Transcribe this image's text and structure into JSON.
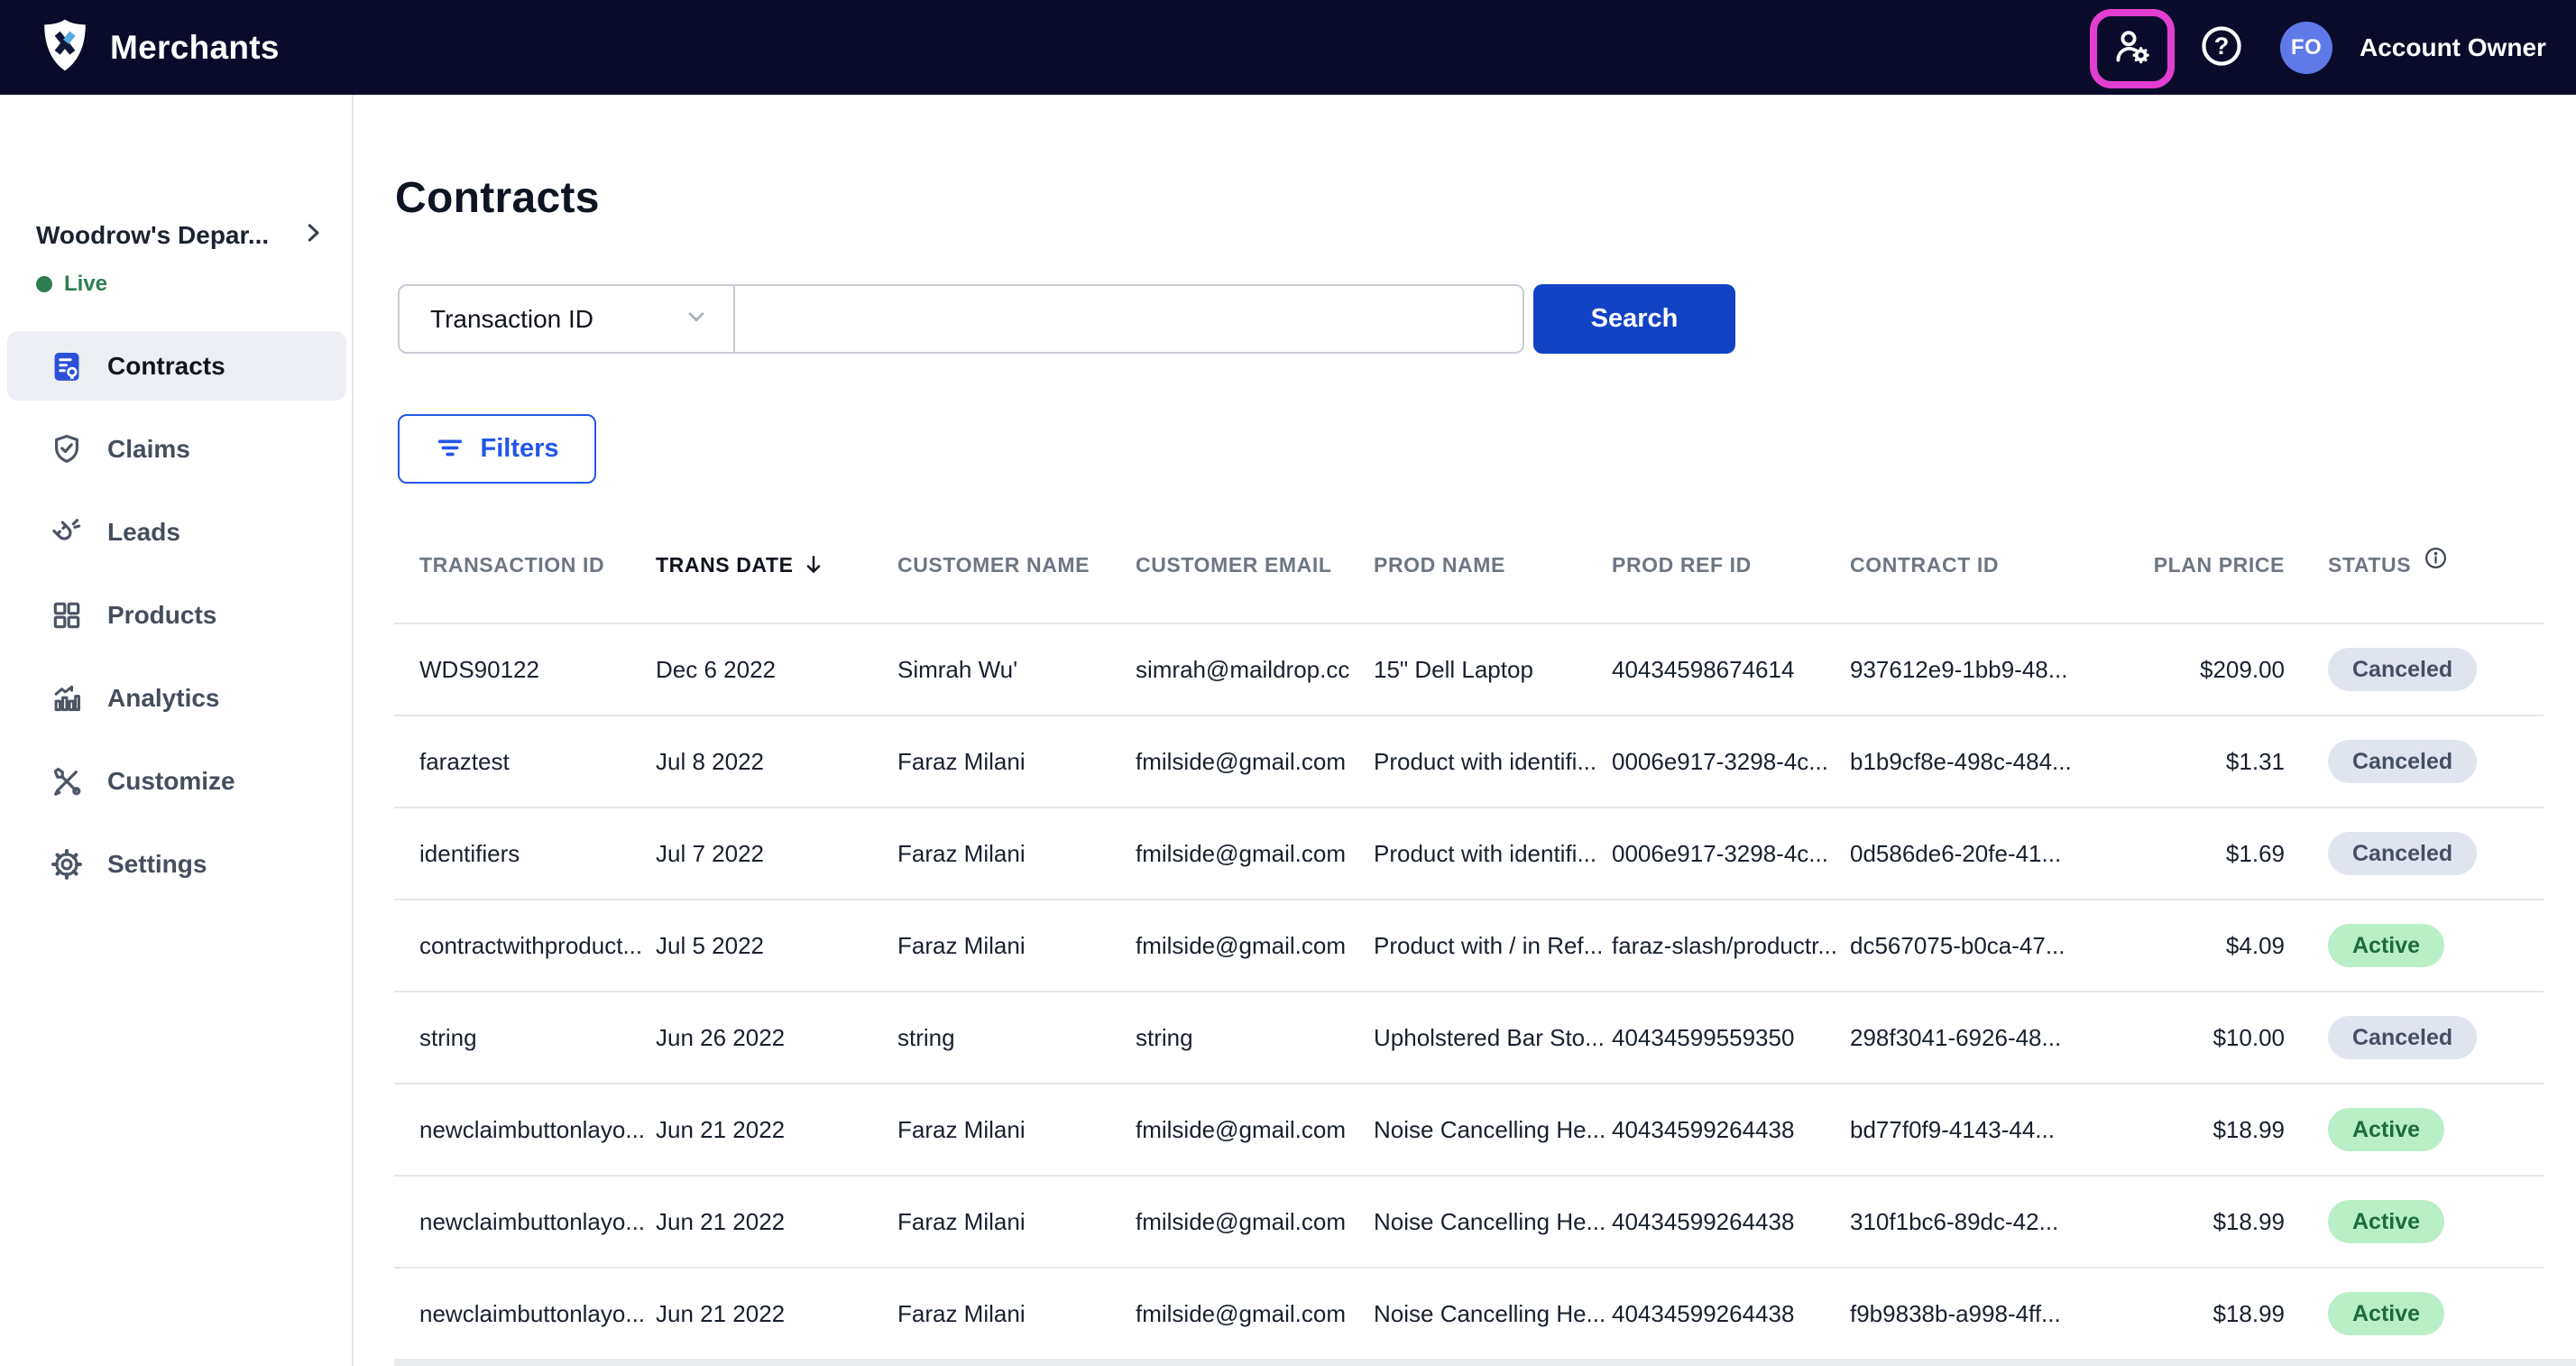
{
  "header": {
    "app_title": "Merchants",
    "avatar_initials": "FO",
    "account_label": "Account Owner",
    "icons": [
      "shield-logo-icon",
      "manage-users-icon",
      "help-icon"
    ]
  },
  "sidebar": {
    "merchant_name": "Woodrow's Depar...",
    "environment_status": "Live",
    "items": [
      {
        "label": "Contracts",
        "icon": "contract-icon",
        "active": true
      },
      {
        "label": "Claims",
        "icon": "shield-check-icon",
        "active": false
      },
      {
        "label": "Leads",
        "icon": "magnet-icon",
        "active": false
      },
      {
        "label": "Products",
        "icon": "grid-icon",
        "active": false
      },
      {
        "label": "Analytics",
        "icon": "bar-chart-icon",
        "active": false
      },
      {
        "label": "Customize",
        "icon": "tools-icon",
        "active": false
      },
      {
        "label": "Settings",
        "icon": "gear-icon",
        "active": false
      }
    ]
  },
  "main": {
    "page_title": "Contracts",
    "search": {
      "selected_field": "Transaction ID",
      "input_value": "",
      "button_label": "Search"
    },
    "filters_label": "Filters",
    "table": {
      "sorted_column": "trans_date",
      "sort_direction": "desc",
      "columns": [
        {
          "key": "transaction_id",
          "label": "TRANSACTION ID"
        },
        {
          "key": "trans_date",
          "label": "TRANS DATE",
          "sorted": true
        },
        {
          "key": "customer_name",
          "label": "CUSTOMER NAME"
        },
        {
          "key": "customer_email",
          "label": "CUSTOMER EMAIL"
        },
        {
          "key": "prod_name",
          "label": "PROD NAME"
        },
        {
          "key": "prod_ref_id",
          "label": "PROD REF ID"
        },
        {
          "key": "contract_id",
          "label": "CONTRACT ID"
        },
        {
          "key": "plan_price",
          "label": "PLAN PRICE",
          "align": "right"
        },
        {
          "key": "status",
          "label": "STATUS",
          "info_icon": true
        }
      ],
      "rows": [
        {
          "transaction_id": "WDS90122",
          "trans_date": "Dec 6 2022",
          "customer_name": "Simrah Wu'",
          "customer_email": "simrah@maildrop.cc",
          "prod_name": "15\" Dell Laptop",
          "prod_ref_id": "40434598674614",
          "contract_id": "937612e9-1bb9-48...",
          "plan_price": "$209.00",
          "status": "Canceled",
          "status_type": "canceled"
        },
        {
          "transaction_id": "faraztest",
          "trans_date": "Jul 8 2022",
          "customer_name": "Faraz Milani",
          "customer_email": "fmilside@gmail.com",
          "prod_name": "Product with identifi...",
          "prod_ref_id": "0006e917-3298-4c...",
          "contract_id": "b1b9cf8e-498c-484...",
          "plan_price": "$1.31",
          "status": "Canceled",
          "status_type": "canceled"
        },
        {
          "transaction_id": "identifiers",
          "trans_date": "Jul 7 2022",
          "customer_name": "Faraz Milani",
          "customer_email": "fmilside@gmail.com",
          "prod_name": "Product with identifi...",
          "prod_ref_id": "0006e917-3298-4c...",
          "contract_id": "0d586de6-20fe-41...",
          "plan_price": "$1.69",
          "status": "Canceled",
          "status_type": "canceled"
        },
        {
          "transaction_id": "contractwithproduct...",
          "trans_date": "Jul 5 2022",
          "customer_name": "Faraz Milani",
          "customer_email": "fmilside@gmail.com",
          "prod_name": "Product with / in Ref...",
          "prod_ref_id": "faraz-slash/productr...",
          "contract_id": "dc567075-b0ca-47...",
          "plan_price": "$4.09",
          "status": "Active",
          "status_type": "active"
        },
        {
          "transaction_id": "string",
          "trans_date": "Jun 26 2022",
          "customer_name": "string",
          "customer_email": "string",
          "prod_name": "Upholstered Bar Sto...",
          "prod_ref_id": "40434599559350",
          "contract_id": "298f3041-6926-48...",
          "plan_price": "$10.00",
          "status": "Canceled",
          "status_type": "canceled"
        },
        {
          "transaction_id": "newclaimbuttonlayo...",
          "trans_date": "Jun 21 2022",
          "customer_name": "Faraz Milani",
          "customer_email": "fmilside@gmail.com",
          "prod_name": "Noise Cancelling He...",
          "prod_ref_id": "40434599264438",
          "contract_id": "bd77f0f9-4143-44...",
          "plan_price": "$18.99",
          "status": "Active",
          "status_type": "active"
        },
        {
          "transaction_id": "newclaimbuttonlayo...",
          "trans_date": "Jun 21 2022",
          "customer_name": "Faraz Milani",
          "customer_email": "fmilside@gmail.com",
          "prod_name": "Noise Cancelling He...",
          "prod_ref_id": "40434599264438",
          "contract_id": "310f1bc6-89dc-42...",
          "plan_price": "$18.99",
          "status": "Active",
          "status_type": "active"
        },
        {
          "transaction_id": "newclaimbuttonlayo...",
          "trans_date": "Jun 21 2022",
          "customer_name": "Faraz Milani",
          "customer_email": "fmilside@gmail.com",
          "prod_name": "Noise Cancelling He...",
          "prod_ref_id": "40434599264438",
          "contract_id": "f9b9838b-a998-4ff...",
          "plan_price": "$18.99",
          "status": "Active",
          "status_type": "active"
        }
      ]
    }
  },
  "colors": {
    "navbar_bg": "#0a0b2b",
    "brand_blue": "#2356e8",
    "search_button_blue": "#1243c4",
    "active_sidebar_icon_blue": "#2b50d8",
    "avatar_bg": "#5e79e8",
    "highlight_ring_pink": "#e23ed0",
    "live_green": "#2e7d51",
    "status_active_bg": "#b9efc7",
    "status_active_text": "#1c6b41",
    "status_canceled_bg": "#e0e4ee",
    "status_canceled_text": "#444f61"
  }
}
